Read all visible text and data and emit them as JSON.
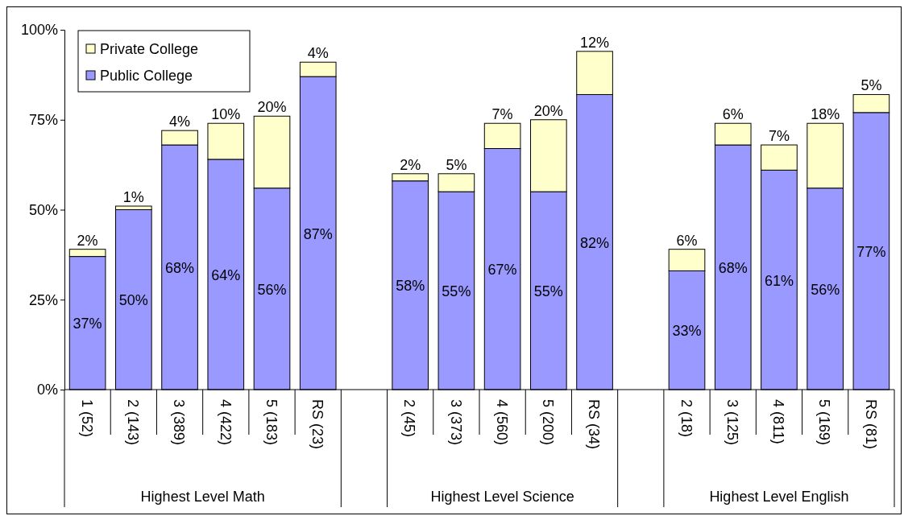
{
  "chart_data": {
    "type": "bar",
    "stacked": true,
    "categories": [
      "1 (52)",
      "2 (143)",
      "3 (389)",
      "4 (422)",
      "5 (183)",
      "RS (23)",
      null,
      "2 (45)",
      "3 (373)",
      "4 (560)",
      "5 (200)",
      "RS (34)",
      null,
      "2 (18)",
      "3 (125)",
      "4 (811)",
      "5 (169)",
      "RS (81)"
    ],
    "series": [
      {
        "name": "Public College",
        "color": "#9999ff",
        "values": [
          37,
          50,
          68,
          64,
          56,
          87,
          null,
          58,
          55,
          67,
          55,
          82,
          null,
          33,
          68,
          61,
          56,
          77
        ],
        "value_labels": [
          "37%",
          "50%",
          "68%",
          "64%",
          "56%",
          "87%",
          null,
          "58%",
          "55%",
          "67%",
          "55%",
          "82%",
          null,
          "33%",
          "68%",
          "61%",
          "56%",
          "77%"
        ]
      },
      {
        "name": "Private College",
        "color": "#ffffcc",
        "values": [
          2,
          1,
          4,
          10,
          20,
          4,
          null,
          2,
          5,
          7,
          20,
          12,
          null,
          6,
          6,
          7,
          18,
          5
        ],
        "value_labels": [
          "2%",
          "1%",
          "4%",
          "10%",
          "20%",
          "4%",
          null,
          "2%",
          "5%",
          "7%",
          "20%",
          "12%",
          null,
          "6%",
          "6%",
          "7%",
          "18%",
          "5%"
        ]
      }
    ],
    "ylim": [
      0,
      100
    ],
    "yticks": [
      {
        "value": 0,
        "label": "0%"
      },
      {
        "value": 25,
        "label": "25%"
      },
      {
        "value": 50,
        "label": "50%"
      },
      {
        "value": 75,
        "label": "75%"
      },
      {
        "value": 100,
        "label": "100%"
      }
    ],
    "annotations": [
      "Highest Level Math",
      "Highest Level Science",
      "Highest Level English"
    ],
    "legend": "top left"
  }
}
